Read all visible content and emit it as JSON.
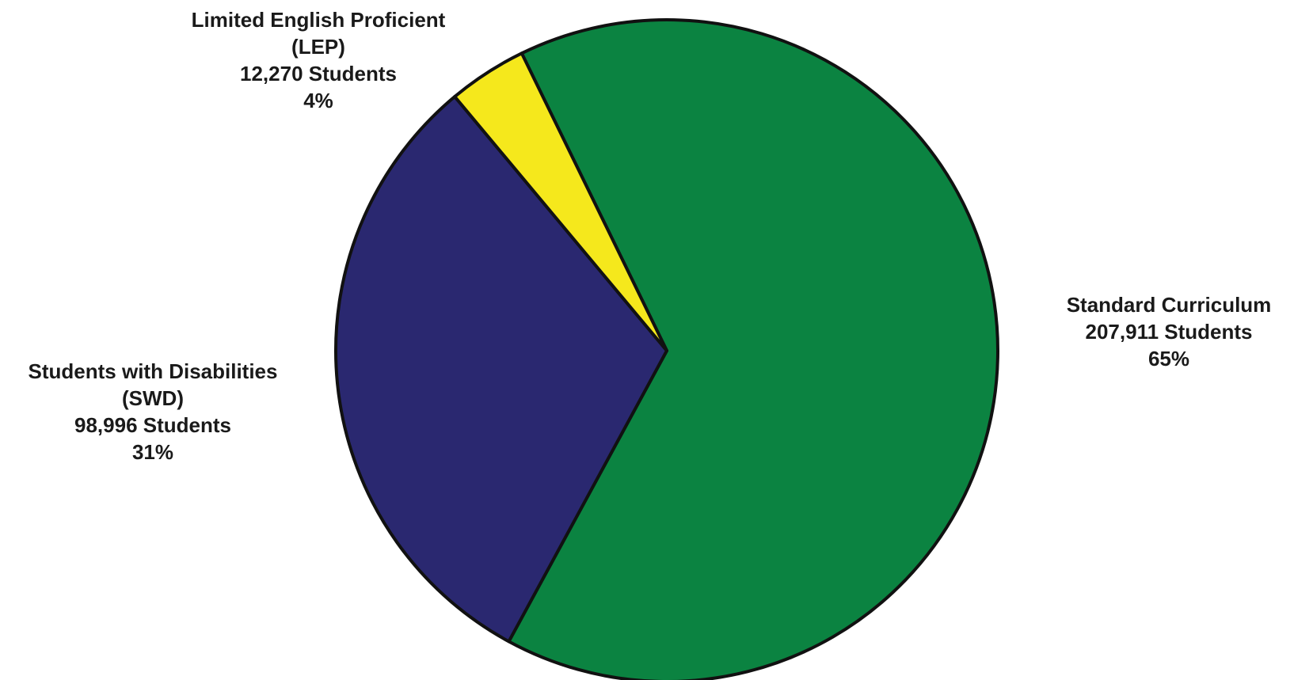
{
  "chart_data": {
    "type": "pie",
    "title": "",
    "slices": [
      {
        "name": "Standard Curriculum",
        "label_lines": [
          "Standard Curriculum"
        ],
        "students_text": "207,911 Students",
        "percent_text": "65%",
        "value": 207911,
        "percent": 65,
        "color": "#0b8341"
      },
      {
        "name": "Students with Disabilities (SWD)",
        "label_lines": [
          "Students with Disabilities",
          "(SWD)"
        ],
        "students_text": "98,996 Students",
        "percent_text": "31%",
        "value": 98996,
        "percent": 31,
        "color": "#2a2870"
      },
      {
        "name": "Limited English Proficient (LEP)",
        "label_lines": [
          "Limited English Proficient",
          "(LEP)"
        ],
        "students_text": "12,270 Students",
        "percent_text": "4%",
        "value": 12270,
        "percent": 4,
        "color": "#f5e81c"
      }
    ],
    "start_angle_deg": 334,
    "direction": "clockwise",
    "legend": "none",
    "label_placement": "outside"
  }
}
